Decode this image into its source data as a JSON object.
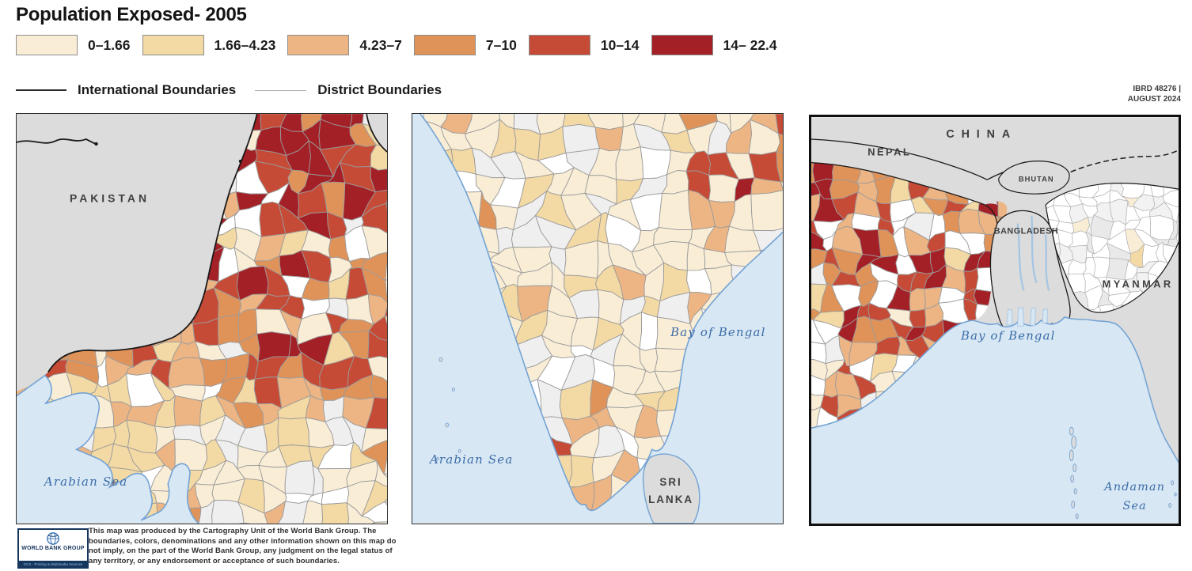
{
  "title": "Population Exposed- 2005",
  "map_ref": {
    "line1": "IBRD 48276 |",
    "line2": "AUGUST 2024"
  },
  "legend": {
    "classes": [
      {
        "label": "0–1.66",
        "color": "#F9EDD6"
      },
      {
        "label": "1.66–4.23",
        "color": "#F3D9A4"
      },
      {
        "label": "4.23–7",
        "color": "#EDB584"
      },
      {
        "label": "7–10",
        "color": "#E09359"
      },
      {
        "label": "10–14",
        "color": "#C54B37"
      },
      {
        "label": "14– 22.4",
        "color": "#A32026"
      }
    ],
    "boundaries": [
      {
        "label": "International Boundaries"
      },
      {
        "label": "District Boundaries"
      }
    ]
  },
  "panels": [
    {
      "id": "northwest-india",
      "labels": {
        "pakistan": "PAKISTAN",
        "arabian_sea": "Arabian Sea"
      }
    },
    {
      "id": "south-india",
      "labels": {
        "arabian_sea": "Arabian Sea",
        "bay_of_bengal": "Bay of Bengal",
        "sri": "SRI",
        "lanka": "LANKA"
      }
    },
    {
      "id": "east-india",
      "labels": {
        "china": "CHINA",
        "nepal": "NEPAL",
        "bhutan": "BHUTAN",
        "bangladesh": "BANGLADESH",
        "myanmar": "MYANMAR",
        "bay_of_bengal": "Bay of Bengal",
        "andaman_line1": "Andaman",
        "andaman_line2": "Sea"
      }
    }
  ],
  "map_colors": {
    "sea": "#D8E7F4",
    "neighbor_land": "#DCDCDC",
    "coastline": "#74A3D4",
    "nodata_white": "#FFFFFF",
    "nodata_gray": "#EFEFEF",
    "international_boundary": "#1A1A1A",
    "district_boundary": "#9B9B9B",
    "sea_label": "#3A6CA8"
  },
  "footer": {
    "logo_title": "WORLD BANK GROUP",
    "logo_subtitle": "GCS - Printing & Multimedia Services",
    "disclaimer": "This map was produced by the Cartography Unit of the World Bank Group. The boundaries, colors, denominations and any other information shown on this map do not imply, on the part of the World Bank Group, any judgment on the legal status of any territory, or any endorsement or acceptance of such boundaries."
  }
}
